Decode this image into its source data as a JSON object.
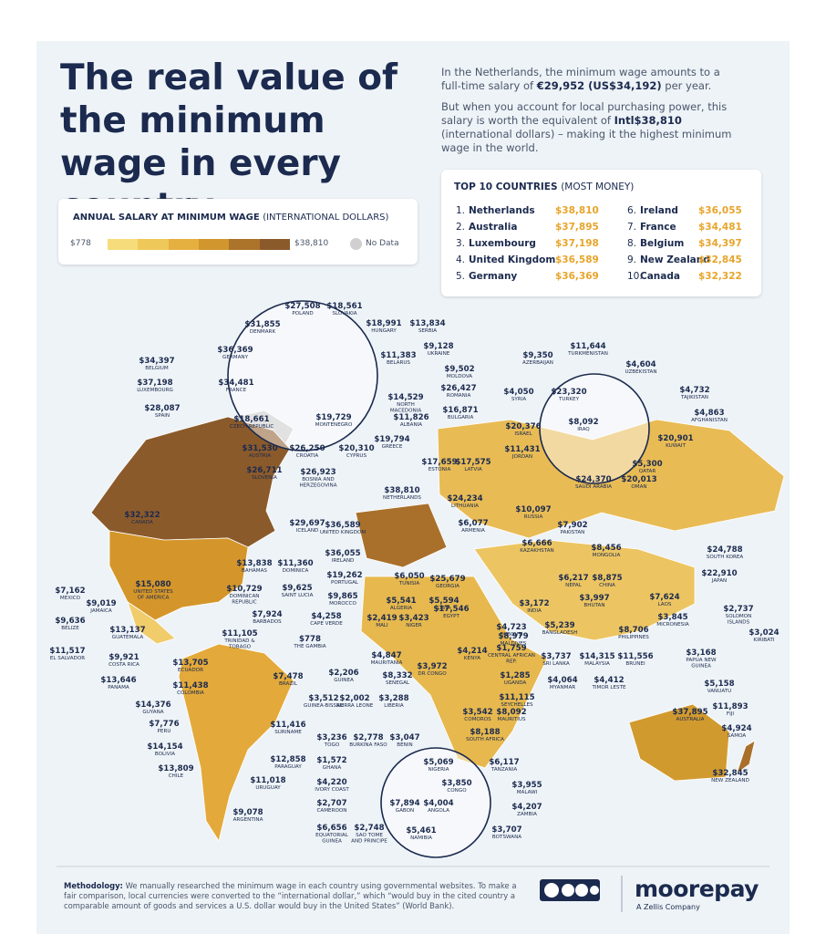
{
  "header": {
    "title": "The real value of the minimum wage in every country",
    "intro_1": {
      "before": "In the Netherlands, the minimum wage amounts to a full-time salary of ",
      "bold": "€29,952 (US$34,192)",
      "after": " per year."
    },
    "intro_2": {
      "before": "But when you account for local purchasing power, this salary is worth the equivalent of ",
      "bold": "Intl$38,810",
      "after": " (international dollars) – making it the highest minimum wage in the world."
    }
  },
  "legend": {
    "title": "ANNUAL SALARY AT MINIMUM WAGE",
    "title_note": "(INTERNATIONAL DOLLARS)",
    "min": "$778",
    "max": "$38,810",
    "no_data": "No Data"
  },
  "top10": {
    "title": "TOP 10 COUNTRIES",
    "title_note": "(MOST MONEY)",
    "rows": [
      {
        "rank": "1.",
        "country": "Netherlands",
        "amount": "$38,810"
      },
      {
        "rank": "2.",
        "country": "Australia",
        "amount": "$37,895"
      },
      {
        "rank": "3.",
        "country": "Luxembourg",
        "amount": "$37,198"
      },
      {
        "rank": "4.",
        "country": "United Kingdom",
        "amount": "$36,589"
      },
      {
        "rank": "5.",
        "country": "Germany",
        "amount": "$36,369"
      },
      {
        "rank": "6.",
        "country": "Ireland",
        "amount": "$36,055"
      },
      {
        "rank": "7.",
        "country": "France",
        "amount": "$34,481"
      },
      {
        "rank": "8.",
        "country": "Belgium",
        "amount": "$34,397"
      },
      {
        "rank": "9.",
        "country": "New Zealand",
        "amount": "$32,845"
      },
      {
        "rank": "10.",
        "country": "Canada",
        "amount": "$32,322"
      }
    ]
  },
  "map_labels": [
    [
      "$27,508",
      "POLAND"
    ],
    [
      "$18,561",
      "SLOVAKIA"
    ],
    [
      "$31,855",
      "DENMARK"
    ],
    [
      "$18,991",
      "HUNGARY"
    ],
    [
      "$13,834",
      "SERBIA"
    ],
    [
      "$36,369",
      "GERMANY"
    ],
    [
      "$34,397",
      "BELGIUM"
    ],
    [
      "$9,128",
      "UKRAINE"
    ],
    [
      "$11,383",
      "BELARUS"
    ],
    [
      "$37,198",
      "LUXEMBOURG"
    ],
    [
      "$34,481",
      "FRANCE"
    ],
    [
      "$9,502",
      "MOLDOVA"
    ],
    [
      "$26,427",
      "ROMANIA"
    ],
    [
      "$14,529",
      "NORTH MACEDONIA"
    ],
    [
      "$28,087",
      "SPAIN"
    ],
    [
      "$16,871",
      "BULGARIA"
    ],
    [
      "$11,826",
      "ALBANIA"
    ],
    [
      "$18,661",
      "CZECH REPUBLIC"
    ],
    [
      "$19,729",
      "MONTENEGRO"
    ],
    [
      "$19,794",
      "GREECE"
    ],
    [
      "$31,530",
      "AUSTRIA"
    ],
    [
      "$26,250",
      "CROATIA"
    ],
    [
      "$20,310",
      "CYPRUS"
    ],
    [
      "$26,711",
      "SLOVENIA"
    ],
    [
      "$26,923",
      "BOSNIA AND HERZEGOVINA"
    ],
    [
      "$29,697",
      "ICELAND"
    ],
    [
      "$36,589",
      "UNITED KINGDOM"
    ],
    [
      "$36,055",
      "IRELAND"
    ],
    [
      "$19,262",
      "PORTUGAL"
    ],
    [
      "$9,865",
      "MOROCCO"
    ],
    [
      "$4,258",
      "CAPE VERDE"
    ],
    [
      "$13,838",
      "BAHAMAS"
    ],
    [
      "$11,360",
      "DOMINICA"
    ],
    [
      "$10,729",
      "DOMINICAN REPUBLIC"
    ],
    [
      "$9,625",
      "SAINT LUCIA"
    ],
    [
      "$7,924",
      "BARBADOS"
    ],
    [
      "$32,322",
      "CANADA"
    ],
    [
      "$15,080",
      "UNITED STATES OF AMERICA"
    ],
    [
      "$7,162",
      "MEXICO"
    ],
    [
      "$9,019",
      "JAMAICA"
    ],
    [
      "$9,636",
      "BELIZE"
    ],
    [
      "$13,137",
      "GUATEMALA"
    ],
    [
      "$11,517",
      "EL SALVADOR"
    ],
    [
      "$11,105",
      "TRINIDAD & TOBAGO"
    ],
    [
      "$778",
      "THE GAMBIA"
    ],
    [
      "$9,921",
      "COSTA RICA"
    ],
    [
      "$13,705",
      "ECUADOR"
    ],
    [
      "$13,646",
      "PANAMA"
    ],
    [
      "$11,438",
      "COLOMBIA"
    ],
    [
      "$7,478",
      "BRAZIL"
    ],
    [
      "$14,376",
      "GUYANA"
    ],
    [
      "$7,776",
      "PERU"
    ],
    [
      "$11,416",
      "SURINAME"
    ],
    [
      "$14,154",
      "BOLIVIA"
    ],
    [
      "$13,809",
      "CHILE"
    ],
    [
      "$12,858",
      "PARAGUAY"
    ],
    [
      "$11,018",
      "URUGUAY"
    ],
    [
      "$9,078",
      "ARGENTINA"
    ],
    [
      "$5,541",
      "ALGERIA"
    ],
    [
      "$5,594",
      "LIBYA"
    ],
    [
      "$6,050",
      "TUNISIA"
    ],
    [
      "$17,546",
      "EGYPT"
    ],
    [
      "$2,419",
      "MALI"
    ],
    [
      "$3,423",
      "NIGER"
    ],
    [
      "$4,847",
      "MAURITANIA"
    ],
    [
      "$2,206",
      "GUINEA"
    ],
    [
      "$8,332",
      "SENEGAL"
    ],
    [
      "$3,512",
      "GUINEA-BISSAU"
    ],
    [
      "$2,002",
      "SIERRA LEONE"
    ],
    [
      "$3,288",
      "LIBERIA"
    ],
    [
      "$3,972",
      "DR CONGO"
    ],
    [
      "$4,214",
      "KENYA"
    ],
    [
      "$1,285",
      "UGANDA"
    ],
    [
      "$1,759",
      "CENTRAL AFRICAN REP."
    ],
    [
      "$4,723",
      "DJIBOUTI"
    ],
    [
      "$11,115",
      "SEYCHELLES"
    ],
    [
      "$3,542",
      "COMOROS"
    ],
    [
      "$8,092",
      "MAURITIUS"
    ],
    [
      "$8,188",
      "SOUTH AFRICA"
    ],
    [
      "$3,236",
      "TOGO"
    ],
    [
      "$2,778",
      "BURKINA FASO"
    ],
    [
      "$3,047",
      "BENIN"
    ],
    [
      "$1,572",
      "GHANA"
    ],
    [
      "$5,069",
      "NIGERIA"
    ],
    [
      "$6,117",
      "TANZANIA"
    ],
    [
      "$4,220",
      "IVORY COAST"
    ],
    [
      "$3,850",
      "CONGO"
    ],
    [
      "$3,955",
      "MALAWI"
    ],
    [
      "$2,707",
      "CAMEROON"
    ],
    [
      "$7,894",
      "GABON"
    ],
    [
      "$4,004",
      "ANGOLA"
    ],
    [
      "$4,207",
      "ZAMBIA"
    ],
    [
      "$6,656",
      "EQUATORIAL GUINEA"
    ],
    [
      "$2,748",
      "SAO TOME AND PRINCIPE"
    ],
    [
      "$5,461",
      "NAMIBIA"
    ],
    [
      "$3,707",
      "BOTSWANA"
    ],
    [
      "$11,644",
      "TURKMENISTAN"
    ],
    [
      "$9,350",
      "AZERBAIJAN"
    ],
    [
      "$4,604",
      "UZBEKISTAN"
    ],
    [
      "$4,050",
      "SYRIA"
    ],
    [
      "$23,320",
      "TURKEY"
    ],
    [
      "$4,732",
      "TAJIKISTAN"
    ],
    [
      "$8,092",
      "IRAQ"
    ],
    [
      "$4,863",
      "AFGHANISTAN"
    ],
    [
      "$20,376",
      "ISRAEL"
    ],
    [
      "$20,901",
      "KUWAIT"
    ],
    [
      "$11,431",
      "JORDAN"
    ],
    [
      "$5,300",
      "QATAR"
    ],
    [
      "$24,370",
      "SAUDI ARABIA"
    ],
    [
      "$20,013",
      "OMAN"
    ],
    [
      "$17,659",
      "ESTONIA"
    ],
    [
      "$17,575",
      "LATVIA"
    ],
    [
      "$38,810",
      "NETHERLANDS"
    ],
    [
      "$24,234",
      "LITHUANIA"
    ],
    [
      "$10,097",
      "RUSSIA"
    ],
    [
      "$6,077",
      "ARMENIA"
    ],
    [
      "$7,902",
      "PAKISTAN"
    ],
    [
      "$6,666",
      "KAZAKHSTAN"
    ],
    [
      "$8,456",
      "MONGOLIA"
    ],
    [
      "$24,788",
      "SOUTH KOREA"
    ],
    [
      "$25,679",
      "GEORGIA"
    ],
    [
      "$6,217",
      "NEPAL"
    ],
    [
      "$8,875",
      "CHINA"
    ],
    [
      "$22,910",
      "JAPAN"
    ],
    [
      "$3,997",
      "BHUTAN"
    ],
    [
      "$7,624",
      "LAOS"
    ],
    [
      "$3,172",
      "INDIA"
    ],
    [
      "$2,737",
      "SOLOMON ISLANDS"
    ],
    [
      "$3,845",
      "MICRONESIA"
    ],
    [
      "$5,239",
      "BANGLADESH"
    ],
    [
      "$8,706",
      "PHILIPPINES"
    ],
    [
      "$3,024",
      "KIRIBATI"
    ],
    [
      "$8,979",
      "MALDIVES"
    ],
    [
      "$3,737",
      "SRI LANKA"
    ],
    [
      "$14,315",
      "MALAYSIA"
    ],
    [
      "$11,556",
      "BRUNEI"
    ],
    [
      "$3,168",
      "PAPUA NEW GUINEA"
    ],
    [
      "$4,064",
      "MYANMAR"
    ],
    [
      "$4,412",
      "TIMOR LESTE"
    ],
    [
      "$5,158",
      "VANUATU"
    ],
    [
      "$37,895",
      "AUSTRALIA"
    ],
    [
      "$11,893",
      "FIJI"
    ],
    [
      "$4,924",
      "SAMOA"
    ],
    [
      "$32,845",
      "NEW ZEALAND"
    ]
  ],
  "footer": {
    "methodology_label": "Methodology:",
    "methodology": " We manually researched the minimum wage in each country using governmental websites. To make a fair comparison, local currencies were converted to the “international dollar,” which “would buy in the cited country a comparable amount of goods and services a U.S. dollar would buy in the United States” (World Bank).",
    "logo": "moorepay",
    "logo_sub": "A Zellis Company"
  }
}
